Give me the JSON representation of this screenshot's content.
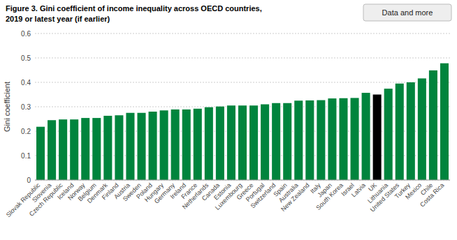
{
  "chart_data": {
    "type": "bar",
    "title": "Figure 3. Gini coefficient of income inequality across OECD countries,",
    "subtitle": "2019 or latest year (if earlier)",
    "annotations": [
      "Data and more"
    ],
    "ylabel": "Gini coefficient",
    "categories": [
      "Slovak Republic",
      "Slovenia",
      "Czech Republic",
      "Iceland",
      "Norway",
      "Belgium",
      "Denmark",
      "Finland",
      "Austria",
      "Sweden",
      "Poland",
      "Hungary",
      "Germany",
      "Ireland",
      "France",
      "Netherlands",
      "Canada",
      "Estonia",
      "Luxembourg",
      "Greece",
      "Portugal",
      "Switzerland",
      "Spain",
      "Australia",
      "New Zealand",
      "Italy",
      "Japan",
      "South Korea",
      "Israel",
      "Latvia",
      "UK",
      "Lithuania",
      "United States",
      "Turkey",
      "Mexico",
      "Chile",
      "Costa Rica"
    ],
    "values": [
      0.218,
      0.245,
      0.248,
      0.248,
      0.254,
      0.254,
      0.263,
      0.265,
      0.275,
      0.275,
      0.28,
      0.285,
      0.289,
      0.289,
      0.292,
      0.298,
      0.301,
      0.305,
      0.305,
      0.305,
      0.31,
      0.315,
      0.315,
      0.325,
      0.326,
      0.327,
      0.334,
      0.335,
      0.336,
      0.357,
      0.35,
      0.374,
      0.395,
      0.4,
      0.416,
      0.449,
      0.478
    ],
    "colors": [
      "#00843D",
      "#00843D",
      "#00843D",
      "#00843D",
      "#00843D",
      "#00843D",
      "#00843D",
      "#00843D",
      "#00843D",
      "#00843D",
      "#00843D",
      "#00843D",
      "#00843D",
      "#00843D",
      "#00843D",
      "#00843D",
      "#00843D",
      "#00843D",
      "#00843D",
      "#00843D",
      "#00843D",
      "#00843D",
      "#00843D",
      "#00843D",
      "#00843D",
      "#00843D",
      "#00843D",
      "#00843D",
      "#00843D",
      "#00843D",
      "#000000",
      "#00843D",
      "#00843D",
      "#00843D",
      "#00843D",
      "#00843D",
      "#00843D"
    ],
    "ylim": [
      0,
      0.6
    ],
    "yticks": [
      0,
      0.1,
      0.2,
      0.3,
      0.4,
      0.5,
      0.6
    ],
    "grid": true
  }
}
